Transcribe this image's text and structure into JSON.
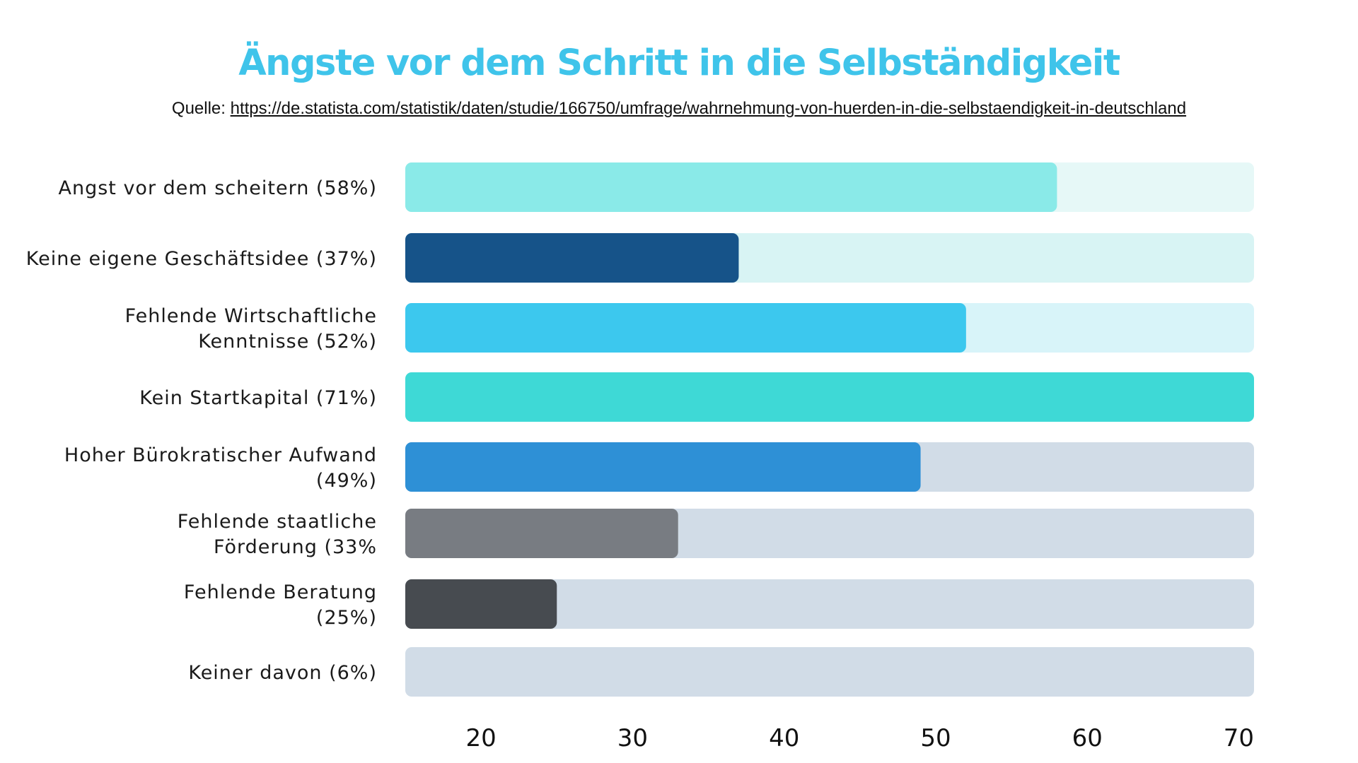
{
  "colors": {
    "title": "#3fc4ea"
  },
  "source": {
    "prefix": "Quelle: ",
    "url_text": "https://de.statista.com/statistik/daten/studie/166750/umfrage/wahrnehmung-von-huerden-in-die-selbstaendigkeit-in-deutschland"
  },
  "chart_data": {
    "type": "bar",
    "orientation": "horizontal",
    "title": "Ängste vor dem Schritt in die Selbständigkeit",
    "xlabel": "",
    "ylabel": "",
    "xlim": [
      15,
      71
    ],
    "x_ticks": [
      20,
      30,
      40,
      50,
      60,
      70
    ],
    "grid": false,
    "legend": "none",
    "categories": [
      {
        "label_lines": [
          "Angst vor dem scheitern (58%)"
        ],
        "value": 58,
        "color": "#8aeae8",
        "track": "#e6f8f7"
      },
      {
        "label_lines": [
          "Keine eigene Geschäftsidee (37%)"
        ],
        "value": 37,
        "color": "#165389",
        "track": "#d8f4f4"
      },
      {
        "label_lines": [
          "Fehlende Wirtschaftliche",
          "Kenntnisse (52%)"
        ],
        "value": 52,
        "color": "#3cc8ee",
        "track": "#d8f4f9"
      },
      {
        "label_lines": [
          "Kein Startkapital (71%)"
        ],
        "value": 71,
        "color": "#3ed9d6",
        "track": "#d8f4f4"
      },
      {
        "label_lines": [
          "Hoher Bürokratischer Aufwand",
          "(49%)"
        ],
        "value": 49,
        "color": "#2e90d6",
        "track": "#d1dce7"
      },
      {
        "label_lines": [
          "Fehlende staatliche",
          "Förderung (33%"
        ],
        "value": 33,
        "color": "#787c82",
        "track": "#d1dce7"
      },
      {
        "label_lines": [
          "Fehlende Beratung",
          "(25%)"
        ],
        "value": 25,
        "color": "#474b50",
        "track": "#d1dce7"
      },
      {
        "label_lines": [
          "Keiner davon (6%)"
        ],
        "value": 6,
        "color": "#1c1c1c",
        "track": "#d1dce7"
      }
    ]
  }
}
